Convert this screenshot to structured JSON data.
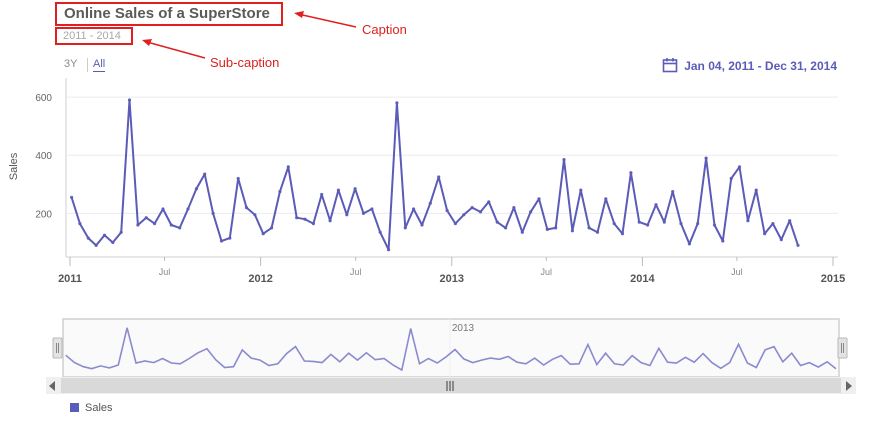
{
  "caption": "Online Sales of a SuperStore",
  "subcaption": "2011 - 2014",
  "annotations": {
    "caption": "Caption",
    "subcaption": "Sub-caption"
  },
  "timeframes": [
    "3Y",
    "All"
  ],
  "selected_timeframe": "All",
  "date_range": "Jan 04, 2011 - Dec 31, 2014",
  "navigator_label": "2013",
  "colors": {
    "series": "#5b5bb8",
    "annotation": "#e02020",
    "navigator": "#8a8ad0"
  },
  "chart_data": {
    "type": "line",
    "ylabel": "Sales",
    "y_ticks": [
      200,
      400,
      600
    ],
    "ylim": [
      50,
      700
    ],
    "x_ticks": [
      {
        "label": "2011",
        "x": "2011-01-01",
        "major": true
      },
      {
        "label": "Jul",
        "x": "2011-07-01",
        "major": false
      },
      {
        "label": "2012",
        "x": "2012-01-01",
        "major": true
      },
      {
        "label": "Jul",
        "x": "2012-07-01",
        "major": false
      },
      {
        "label": "2013",
        "x": "2013-01-01",
        "major": true
      },
      {
        "label": "Jul",
        "x": "2013-07-01",
        "major": false
      },
      {
        "label": "2014",
        "x": "2014-01-01",
        "major": true
      },
      {
        "label": "Jul",
        "x": "2014-07-01",
        "major": false
      },
      {
        "label": "2015",
        "x": "2015-01-01",
        "major": true
      }
    ],
    "series": [
      {
        "name": "Sales",
        "points": [
          [
            "2011-01-04",
            255
          ],
          [
            "2011-01-20",
            165
          ],
          [
            "2011-02-05",
            115
          ],
          [
            "2011-02-20",
            90
          ],
          [
            "2011-03-08",
            125
          ],
          [
            "2011-03-24",
            100
          ],
          [
            "2011-04-09",
            135
          ],
          [
            "2011-04-25",
            590
          ],
          [
            "2011-05-11",
            160
          ],
          [
            "2011-05-27",
            185
          ],
          [
            "2011-06-12",
            165
          ],
          [
            "2011-06-28",
            215
          ],
          [
            "2011-07-14",
            160
          ],
          [
            "2011-07-30",
            150
          ],
          [
            "2011-08-15",
            215
          ],
          [
            "2011-08-31",
            285
          ],
          [
            "2011-09-16",
            335
          ],
          [
            "2011-10-02",
            200
          ],
          [
            "2011-10-18",
            105
          ],
          [
            "2011-11-03",
            115
          ],
          [
            "2011-11-19",
            320
          ],
          [
            "2011-12-05",
            220
          ],
          [
            "2011-12-21",
            195
          ],
          [
            "2012-01-06",
            130
          ],
          [
            "2012-01-22",
            150
          ],
          [
            "2012-02-07",
            275
          ],
          [
            "2012-02-23",
            360
          ],
          [
            "2012-03-10",
            185
          ],
          [
            "2012-03-26",
            180
          ],
          [
            "2012-04-11",
            165
          ],
          [
            "2012-04-27",
            265
          ],
          [
            "2012-05-13",
            175
          ],
          [
            "2012-05-29",
            280
          ],
          [
            "2012-06-14",
            195
          ],
          [
            "2012-06-30",
            285
          ],
          [
            "2012-07-16",
            200
          ],
          [
            "2012-08-01",
            215
          ],
          [
            "2012-08-17",
            135
          ],
          [
            "2012-09-02",
            75
          ],
          [
            "2012-09-18",
            580
          ],
          [
            "2012-10-04",
            150
          ],
          [
            "2012-10-20",
            215
          ],
          [
            "2012-11-05",
            160
          ],
          [
            "2012-11-21",
            235
          ],
          [
            "2012-12-07",
            325
          ],
          [
            "2012-12-23",
            210
          ],
          [
            "2013-01-08",
            165
          ],
          [
            "2013-01-24",
            195
          ],
          [
            "2013-02-09",
            220
          ],
          [
            "2013-02-25",
            205
          ],
          [
            "2013-03-13",
            240
          ],
          [
            "2013-03-29",
            170
          ],
          [
            "2013-04-14",
            150
          ],
          [
            "2013-04-30",
            220
          ],
          [
            "2013-05-16",
            135
          ],
          [
            "2013-06-01",
            205
          ],
          [
            "2013-06-17",
            250
          ],
          [
            "2013-07-03",
            145
          ],
          [
            "2013-07-19",
            150
          ],
          [
            "2013-08-04",
            385
          ],
          [
            "2013-08-20",
            140
          ],
          [
            "2013-09-05",
            280
          ],
          [
            "2013-09-21",
            150
          ],
          [
            "2013-10-07",
            135
          ],
          [
            "2013-10-23",
            250
          ],
          [
            "2013-11-08",
            165
          ],
          [
            "2013-11-24",
            130
          ],
          [
            "2013-12-10",
            340
          ],
          [
            "2013-12-26",
            170
          ],
          [
            "2014-01-11",
            160
          ],
          [
            "2014-01-27",
            230
          ],
          [
            "2014-02-12",
            170
          ],
          [
            "2014-02-28",
            275
          ],
          [
            "2014-03-16",
            165
          ],
          [
            "2014-04-01",
            95
          ],
          [
            "2014-04-17",
            165
          ],
          [
            "2014-05-03",
            390
          ],
          [
            "2014-05-19",
            160
          ],
          [
            "2014-06-04",
            105
          ],
          [
            "2014-06-20",
            320
          ],
          [
            "2014-07-06",
            360
          ],
          [
            "2014-07-22",
            175
          ],
          [
            "2014-08-07",
            280
          ],
          [
            "2014-08-23",
            130
          ],
          [
            "2014-09-08",
            165
          ],
          [
            "2014-09-24",
            110
          ],
          [
            "2014-10-10",
            175
          ],
          [
            "2014-10-26",
            90
          ]
        ]
      }
    ]
  }
}
